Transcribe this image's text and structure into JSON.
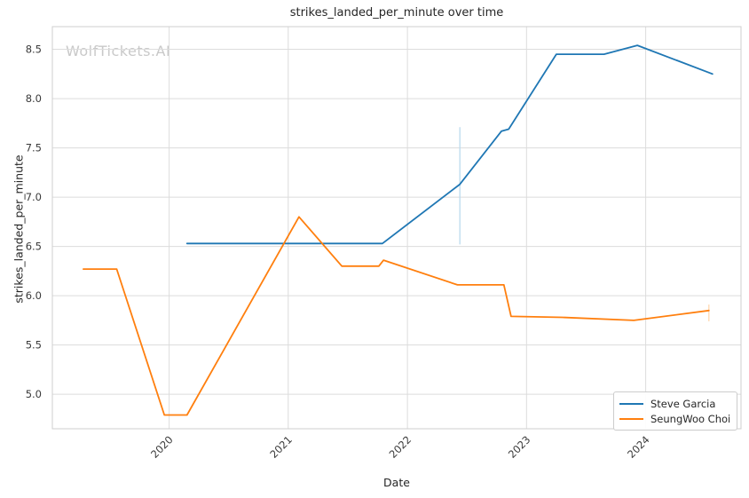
{
  "watermark": "WolfTickets.AI",
  "colors": {
    "grid": "#dcdcdc",
    "border": "#cfcfcf",
    "tick_text": "#3a3a3a",
    "title_text": "#262626",
    "watermark_text": "#c9c9c9",
    "background": "#ffffff",
    "series_blue": "#1f77b4",
    "series_orange": "#ff7f0e"
  },
  "chart_data": {
    "type": "line",
    "title": "strikes_landed_per_minute over time",
    "xlabel": "Date",
    "ylabel": "strikes_landed_per_minute",
    "grid": true,
    "legend_position": "lower right",
    "xlim": [
      2019.02,
      2024.8
    ],
    "ylim": [
      4.65,
      8.73
    ],
    "x_ticks": [
      "2020",
      "2021",
      "2022",
      "2023",
      "2024"
    ],
    "y_ticks": [
      "5.0",
      "5.5",
      "6.0",
      "6.5",
      "7.0",
      "7.5",
      "8.0",
      "8.5"
    ],
    "legend": [
      "Steve Garcia",
      "SeungWoo Choi"
    ],
    "series": [
      {
        "name": "Steve Garcia",
        "color": "#1f77b4",
        "x": [
          2020.15,
          2021.79,
          2022.44,
          2022.79,
          2022.85,
          2023.25,
          2023.65,
          2023.93,
          2024.56
        ],
        "y": [
          6.53,
          6.53,
          7.13,
          7.67,
          7.69,
          8.45,
          8.45,
          8.54,
          8.25
        ],
        "error_bar": {
          "x": 2022.44,
          "y_min": 6.52,
          "y_max": 7.71,
          "color": "#bcdaee"
        }
      },
      {
        "name": "SeungWoo Choi",
        "color": "#ff7f0e",
        "x": [
          2019.28,
          2019.56,
          2019.96,
          2020.15,
          2021.09,
          2021.45,
          2021.76,
          2021.8,
          2022.42,
          2022.81,
          2022.87,
          2023.3,
          2023.9,
          2024.53
        ],
        "y": [
          6.27,
          6.27,
          4.79,
          4.79,
          6.8,
          6.3,
          6.3,
          6.36,
          6.11,
          6.11,
          5.79,
          5.78,
          5.75,
          5.85
        ],
        "error_bar": {
          "x": 2024.53,
          "y_min": 5.74,
          "y_max": 5.91,
          "color": "#ffd8b0"
        }
      }
    ]
  }
}
